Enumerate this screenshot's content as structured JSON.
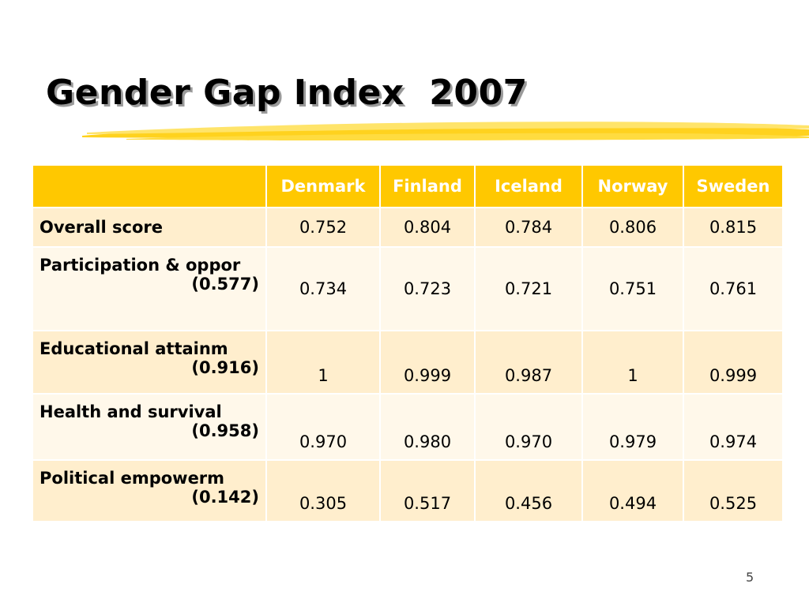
{
  "slide": {
    "title": "Gender Gap Index  2007",
    "page_number": "5"
  },
  "table": {
    "corner": "",
    "columns": [
      "Denmark",
      "Finland",
      "Iceland",
      "Norway",
      "Sweden"
    ],
    "rows": [
      {
        "label": "Overall score",
        "sub": "",
        "values": [
          "0.752",
          "0.804",
          "0.784",
          "0.806",
          "0.815"
        ]
      },
      {
        "label": "Participation & oppor",
        "sub": "(0.577)",
        "values": [
          "0.734",
          "0.723",
          "0.721",
          "0.751",
          "0.761"
        ]
      },
      {
        "label": "Educational attainm",
        "sub": "(0.916)",
        "values": [
          "1",
          "0.999",
          "0.987",
          "1",
          "0.999"
        ]
      },
      {
        "label": "Health and survival",
        "sub": "(0.958)",
        "values": [
          "0.970",
          "0.980",
          "0.970",
          "0.979",
          "0.974"
        ]
      },
      {
        "label": "Political empowerm",
        "sub": "(0.142)",
        "values": [
          "0.305",
          "0.517",
          "0.456",
          "0.494",
          "0.525"
        ]
      }
    ]
  },
  "colors": {
    "header_bg": "#ffc800",
    "row_dark": "#ffeecd",
    "row_light": "#fff8ea",
    "underline": "#ffd21e"
  }
}
